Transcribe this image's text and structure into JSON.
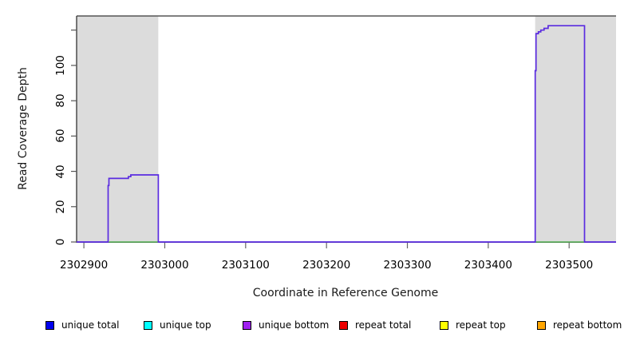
{
  "chart_data": {
    "type": "line",
    "title": "",
    "xlabel": "Coordinate in Reference Genome",
    "ylabel": "Read Coverage Depth",
    "xlim": [
      2302891,
      2303558
    ],
    "ylim": [
      0,
      128
    ],
    "x_ticks": [
      2302900,
      2303000,
      2303100,
      2303200,
      2303300,
      2303400,
      2303500
    ],
    "x_tick_labels": [
      "2302900",
      "2303000",
      "2303100",
      "2303200",
      "2303300",
      "2303400",
      "2303500"
    ],
    "y_ticks": [
      0,
      20,
      40,
      60,
      80,
      100,
      120
    ],
    "y_tick_labels": [
      "0",
      "20",
      "40",
      "60",
      "80",
      "100",
      ""
    ],
    "grid": false,
    "legend_position": "bottom",
    "colors": {
      "background": "#ffffff",
      "shaded_region": "#dcdcdc",
      "axis": "#4a4a4a",
      "coverage_line": "#5a2be0",
      "annotation_line": "#55b055"
    },
    "shaded_regions": [
      {
        "name": "left repeat-masked region",
        "start": 2302891,
        "end": 2302992
      },
      {
        "name": "right repeat-masked region",
        "start": 2303458,
        "end": 2303558
      }
    ],
    "series": [
      {
        "name": "unique bottom coverage",
        "color": "#5a2be0",
        "points": [
          [
            2302891,
            0
          ],
          [
            2302930,
            0
          ],
          [
            2302930,
            32
          ],
          [
            2302931,
            32
          ],
          [
            2302931,
            36
          ],
          [
            2302955,
            36
          ],
          [
            2302955,
            37
          ],
          [
            2302958,
            37
          ],
          [
            2302958,
            38
          ],
          [
            2302992,
            38
          ],
          [
            2302992,
            0
          ],
          [
            2303458,
            0
          ],
          [
            2303458,
            97
          ],
          [
            2303459,
            97
          ],
          [
            2303459,
            118
          ],
          [
            2303462,
            118
          ],
          [
            2303462,
            119
          ],
          [
            2303465,
            119
          ],
          [
            2303465,
            120
          ],
          [
            2303469,
            120
          ],
          [
            2303469,
            121
          ],
          [
            2303474,
            121
          ],
          [
            2303474,
            122.5
          ],
          [
            2303519,
            122.5
          ],
          [
            2303519,
            0
          ],
          [
            2303558,
            0
          ]
        ]
      }
    ],
    "annotation_segments": [
      {
        "name": "left baseline annotation",
        "x1": 2302931,
        "x2": 2302992,
        "y": 0
      },
      {
        "name": "right baseline annotation",
        "x1": 2303458,
        "x2": 2303519,
        "y": 0
      }
    ],
    "legend": [
      {
        "label": "unique total",
        "color": "#0000ee"
      },
      {
        "label": "unique top",
        "color": "#00ffff"
      },
      {
        "label": "unique bottom",
        "color": "#a020f0"
      },
      {
        "label": "repeat total",
        "color": "#ee0000"
      },
      {
        "label": "repeat top",
        "color": "#ffff00"
      },
      {
        "label": "repeat bottom",
        "color": "#ffa500"
      }
    ]
  }
}
